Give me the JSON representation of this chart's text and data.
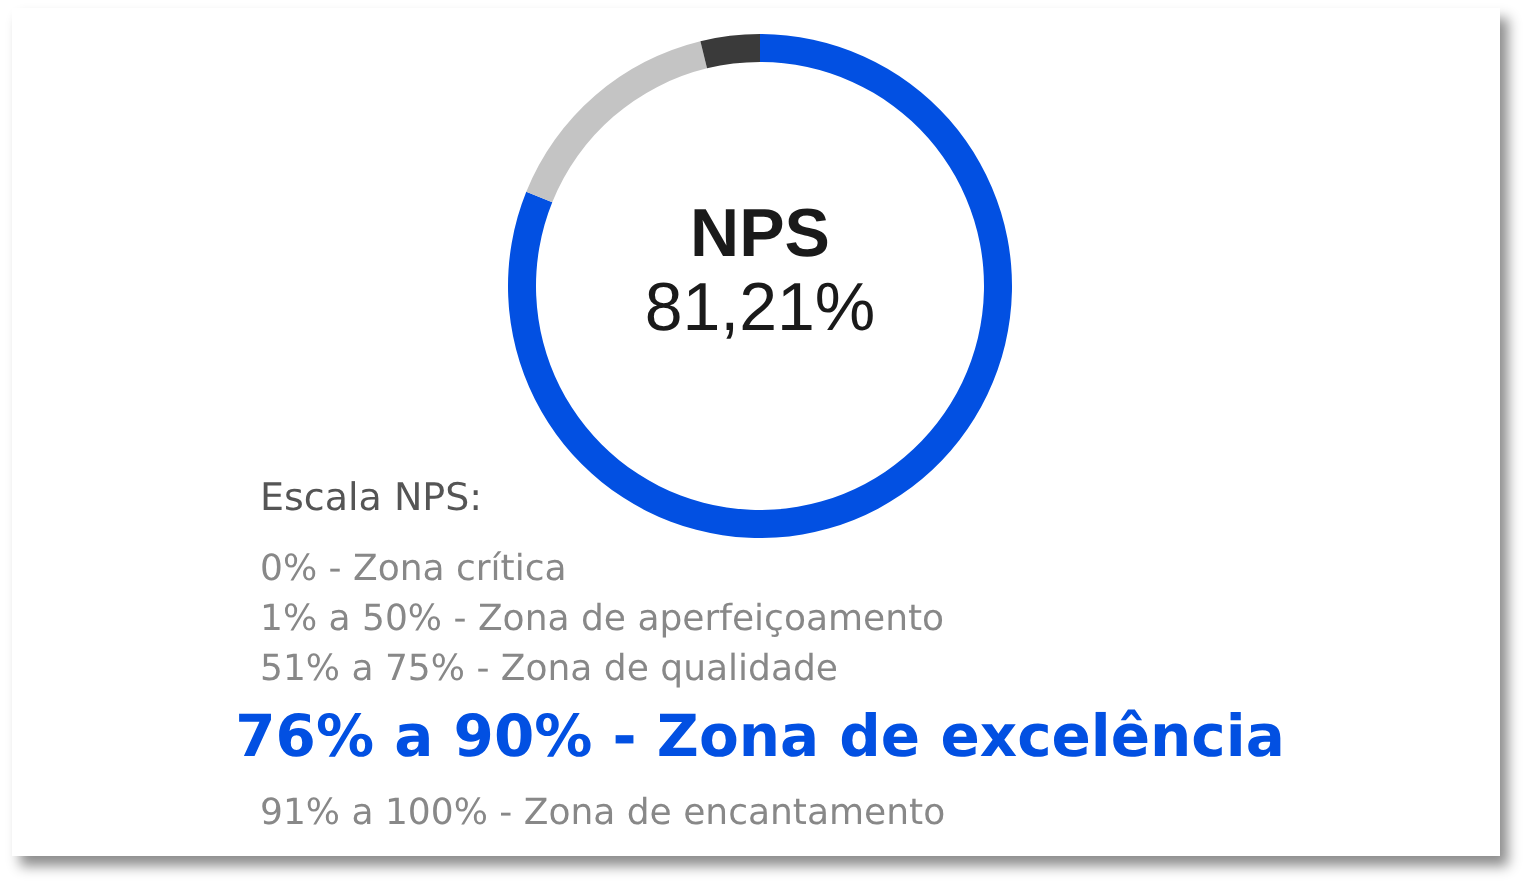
{
  "chart_data": {
    "type": "donut",
    "title": "NPS",
    "subtitle": "81,21%",
    "categories": [
      null,
      null,
      null
    ],
    "values": [
      81.1,
      15.1,
      3.8
    ],
    "colors": [
      "#0250e2",
      "#c4c4c4",
      "#3a3a3a"
    ],
    "annotations": [
      "Escala NPS:",
      "0% - Zona crítica",
      "1% a 50% - Zona de aperfeiçoamento",
      "51% a 75% - Zona de qualidade",
      "76% a 90% - Zona de excelência",
      "91% a 100% - Zona de encantamento"
    ]
  }
}
